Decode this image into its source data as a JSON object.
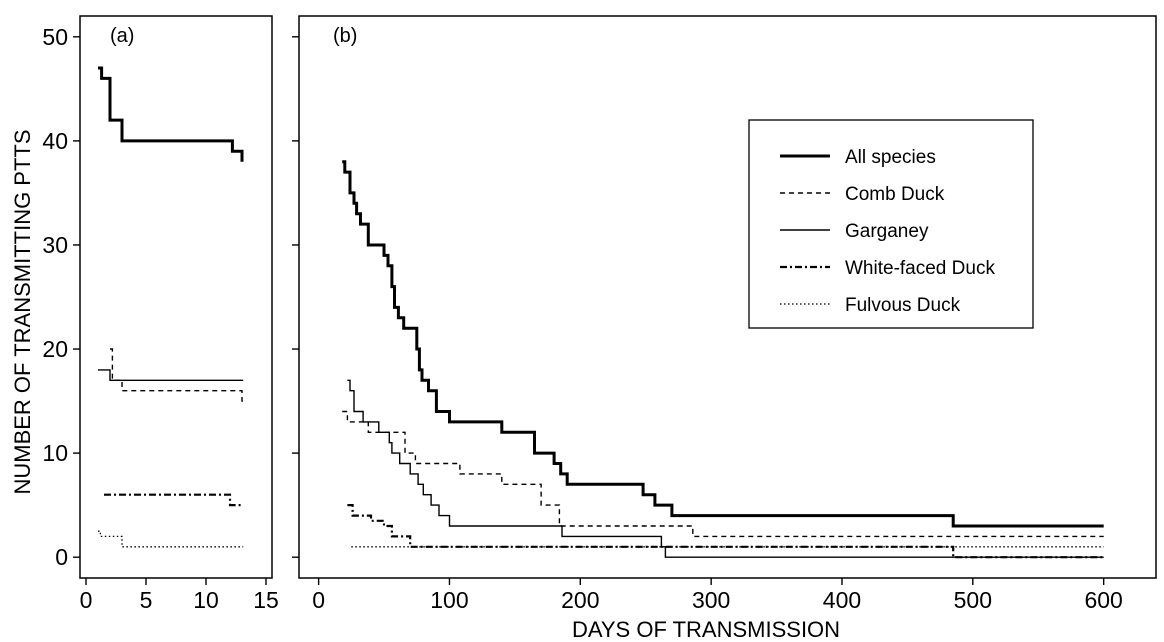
{
  "chart_data": {
    "type": "line",
    "ylabel": "NUMBER OF TRANSMITTING PTTS",
    "xlabel": "DAYS OF TRANSMISSION",
    "yticks": [
      0,
      10,
      20,
      30,
      40,
      50
    ],
    "ylim": [
      -2,
      52
    ],
    "grid": false,
    "legend_placement": "top-right",
    "legend_panel": "b",
    "styles": {
      "All species": {
        "width": 3,
        "dash": ""
      },
      "Comb Duck": {
        "width": 1.4,
        "dash": "5,4"
      },
      "Garganey": {
        "width": 1.4,
        "dash": ""
      },
      "White-faced Duck": {
        "width": 2.2,
        "dash": "7,3,2,3"
      },
      "Fulvous Duck": {
        "width": 1.3,
        "dash": "1.5,2.5"
      }
    },
    "panels": [
      {
        "label": "(a)",
        "xlim": [
          -0.5,
          15.5
        ],
        "xticks": [
          0,
          5,
          10,
          15
        ],
        "series": [
          {
            "name": "All species",
            "steps": [
              [
                1,
                47
              ],
              [
                1.3,
                46
              ],
              [
                2,
                42
              ],
              [
                3,
                40
              ],
              [
                12.2,
                39
              ],
              [
                13,
                38
              ]
            ]
          },
          {
            "name": "Comb Duck",
            "steps": [
              [
                2,
                20
              ],
              [
                2.2,
                17
              ],
              [
                3,
                16
              ],
              [
                13,
                15
              ]
            ],
            "end": 13.1
          },
          {
            "name": "Garganey",
            "steps": [
              [
                1,
                18
              ],
              [
                2,
                17
              ]
            ],
            "end": 13.1
          },
          {
            "name": "White-faced Duck",
            "steps": [
              [
                1.5,
                6
              ],
              [
                12,
                5
              ]
            ],
            "end": 13.1
          },
          {
            "name": "Fulvous Duck",
            "steps": [
              [
                1,
                2.5
              ],
              [
                1.2,
                2
              ],
              [
                3,
                1
              ]
            ],
            "end": 13.1
          }
        ]
      },
      {
        "label": "(b)",
        "xlim": [
          -15,
          640
        ],
        "xticks": [
          0,
          100,
          200,
          300,
          400,
          500,
          600
        ],
        "series": [
          {
            "name": "All species",
            "steps": [
              [
                18,
                38
              ],
              [
                20,
                37
              ],
              [
                24,
                35
              ],
              [
                27,
                34
              ],
              [
                29,
                33
              ],
              [
                32,
                32
              ],
              [
                38,
                30
              ],
              [
                50,
                29
              ],
              [
                53,
                28
              ],
              [
                56,
                26
              ],
              [
                58,
                24
              ],
              [
                61,
                23
              ],
              [
                65,
                22
              ],
              [
                75,
                20
              ],
              [
                77,
                18
              ],
              [
                79,
                17
              ],
              [
                84,
                16
              ],
              [
                90,
                14
              ],
              [
                100,
                13
              ],
              [
                140,
                12
              ],
              [
                165,
                10
              ],
              [
                180,
                9
              ],
              [
                185,
                8
              ],
              [
                190,
                7
              ],
              [
                248,
                6
              ],
              [
                257,
                5
              ],
              [
                270,
                4
              ],
              [
                485,
                3
              ]
            ],
            "end": 600
          },
          {
            "name": "Comb Duck",
            "steps": [
              [
                18,
                14
              ],
              [
                22,
                13
              ],
              [
                38,
                12
              ],
              [
                66,
                10
              ],
              [
                74,
                9
              ],
              [
                108,
                8
              ],
              [
                140,
                7
              ],
              [
                170,
                5
              ],
              [
                184,
                3
              ],
              [
                286,
                2
              ]
            ],
            "end": 600
          },
          {
            "name": "Garganey",
            "steps": [
              [
                22,
                17
              ],
              [
                24,
                16
              ],
              [
                27,
                14
              ],
              [
                34,
                13
              ],
              [
                46,
                12
              ],
              [
                54,
                11
              ],
              [
                56,
                10
              ],
              [
                62,
                9
              ],
              [
                70,
                8
              ],
              [
                76,
                7
              ],
              [
                80,
                6
              ],
              [
                86,
                5
              ],
              [
                92,
                4
              ],
              [
                100,
                3
              ],
              [
                186,
                2
              ],
              [
                262,
                1
              ],
              [
                265,
                0
              ]
            ],
            "end": 600
          },
          {
            "name": "White-faced Duck",
            "steps": [
              [
                22,
                5
              ],
              [
                26,
                4
              ],
              [
                40,
                3.5
              ],
              [
                50,
                3
              ],
              [
                56,
                2
              ],
              [
                70,
                1
              ],
              [
                485,
                0
              ]
            ],
            "end": 600
          },
          {
            "name": "Fulvous Duck",
            "steps": [
              [
                25,
                1
              ]
            ],
            "end": 600
          }
        ]
      }
    ]
  }
}
